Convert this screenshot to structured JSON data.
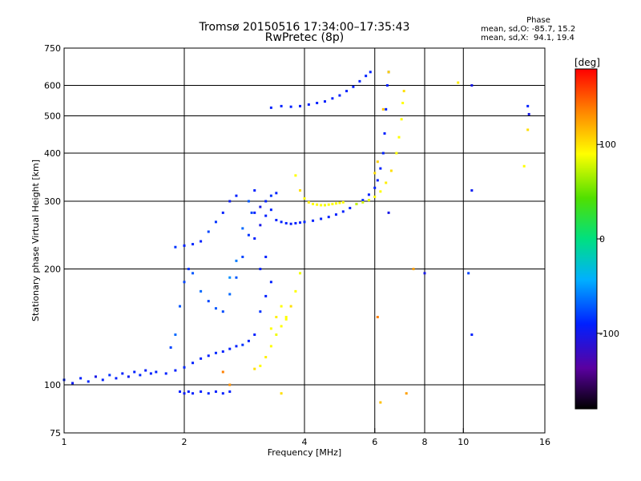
{
  "header": {
    "title": "Tromsø 20150516 17:34:00–17:35:43",
    "subtitle": "RwPretec (8p)"
  },
  "phase_stats": {
    "heading": "Phase",
    "line_o": "mean, sd,O: -85.7, 15.2",
    "line_x": "mean, sd,X:  94.1, 19.4"
  },
  "colorbar": {
    "label": "[deg]",
    "ticks": [
      100,
      0,
      -100
    ],
    "range": [
      -180,
      180
    ]
  },
  "chart_data": {
    "type": "scatter",
    "xlabel": "Frequency [MHz]",
    "ylabel": "Stationary phase Virtual Height [km]",
    "x_scale": "log",
    "y_scale": "log",
    "xlim": [
      1,
      16
    ],
    "ylim": [
      75,
      750
    ],
    "x_ticks": [
      1,
      2,
      4,
      6,
      8,
      10,
      16
    ],
    "y_ticks": [
      75,
      100,
      200,
      300,
      400,
      500,
      600,
      750
    ],
    "x_grid": [
      2,
      4,
      6,
      8,
      10
    ],
    "y_grid": [
      100,
      200,
      300,
      400,
      500,
      600
    ],
    "grid": true,
    "series": [
      {
        "name": "O",
        "points": [
          [
            1.0,
            103,
            -100
          ],
          [
            1.05,
            101,
            -105
          ],
          [
            1.1,
            104,
            -100
          ],
          [
            1.15,
            102,
            -98
          ],
          [
            1.2,
            105,
            -110
          ],
          [
            1.25,
            103,
            -100
          ],
          [
            1.3,
            106,
            -95
          ],
          [
            1.35,
            104,
            -100
          ],
          [
            1.4,
            107,
            -100
          ],
          [
            1.45,
            105,
            -105
          ],
          [
            1.5,
            108,
            -100
          ],
          [
            1.55,
            106,
            -98
          ],
          [
            1.6,
            109,
            -102
          ],
          [
            1.65,
            107,
            -100
          ],
          [
            1.7,
            108,
            -100
          ],
          [
            1.8,
            107,
            -100
          ],
          [
            1.9,
            109,
            -100
          ],
          [
            2.0,
            111,
            -98
          ],
          [
            2.1,
            114,
            -100
          ],
          [
            2.2,
            117,
            -100
          ],
          [
            2.3,
            119,
            -100
          ],
          [
            2.4,
            121,
            -98
          ],
          [
            2.5,
            122,
            -100
          ],
          [
            2.6,
            124,
            -100
          ],
          [
            2.7,
            126,
            -100
          ],
          [
            2.8,
            127,
            -95
          ],
          [
            2.9,
            130,
            -100
          ],
          [
            3.0,
            135,
            -100
          ],
          [
            1.95,
            96,
            -100
          ],
          [
            2.0,
            95,
            -105
          ],
          [
            2.05,
            96,
            -100
          ],
          [
            2.1,
            95,
            -100
          ],
          [
            2.2,
            96,
            -100
          ],
          [
            2.3,
            95,
            -98
          ],
          [
            2.4,
            96,
            -100
          ],
          [
            2.5,
            95,
            -100
          ],
          [
            2.6,
            96,
            -100
          ],
          [
            1.85,
            125,
            -90
          ],
          [
            1.9,
            135,
            -80
          ],
          [
            1.95,
            160,
            -85
          ],
          [
            2.0,
            185,
            -90
          ],
          [
            2.05,
            200,
            -95
          ],
          [
            2.1,
            195,
            -85
          ],
          [
            2.2,
            175,
            -80
          ],
          [
            2.3,
            165,
            -90
          ],
          [
            2.4,
            158,
            -85
          ],
          [
            2.5,
            155,
            -88
          ],
          [
            2.6,
            172,
            -80
          ],
          [
            2.7,
            190,
            -85
          ],
          [
            2.8,
            215,
            -90
          ],
          [
            2.9,
            245,
            -95
          ],
          [
            2.95,
            280,
            -90
          ],
          [
            2.6,
            190,
            -70
          ],
          [
            2.7,
            210,
            -75
          ],
          [
            2.8,
            255,
            -80
          ],
          [
            2.9,
            300,
            -85
          ],
          [
            3.0,
            320,
            -100
          ],
          [
            1.9,
            228,
            -95
          ],
          [
            2.0,
            230,
            -100
          ],
          [
            2.1,
            232,
            -98
          ],
          [
            2.2,
            236,
            -100
          ],
          [
            2.3,
            250,
            -90
          ],
          [
            2.4,
            265,
            -95
          ],
          [
            2.5,
            280,
            -100
          ],
          [
            2.6,
            300,
            -105
          ],
          [
            2.7,
            310,
            -100
          ],
          [
            3.0,
            280,
            -100
          ],
          [
            3.1,
            290,
            -110
          ],
          [
            3.2,
            300,
            -100
          ],
          [
            3.3,
            310,
            -95
          ],
          [
            3.4,
            315,
            -100
          ],
          [
            3.0,
            240,
            -100
          ],
          [
            3.1,
            260,
            -110
          ],
          [
            3.2,
            275,
            -100
          ],
          [
            3.3,
            285,
            -100
          ],
          [
            3.4,
            268,
            -100
          ],
          [
            3.5,
            265,
            -100
          ],
          [
            3.6,
            263,
            -100
          ],
          [
            3.7,
            262,
            -102
          ],
          [
            3.8,
            263,
            -100
          ],
          [
            3.9,
            264,
            -100
          ],
          [
            4.0,
            265,
            -98
          ],
          [
            4.2,
            267,
            -100
          ],
          [
            4.4,
            270,
            -100
          ],
          [
            4.6,
            273,
            -100
          ],
          [
            4.8,
            277,
            -100
          ],
          [
            5.0,
            282,
            -100
          ],
          [
            5.2,
            288,
            -100
          ],
          [
            5.4,
            295,
            -100
          ],
          [
            5.6,
            302,
            -98
          ],
          [
            5.8,
            312,
            -100
          ],
          [
            6.0,
            325,
            -100
          ],
          [
            6.1,
            340,
            -100
          ],
          [
            6.2,
            365,
            -100
          ],
          [
            6.3,
            400,
            -100
          ],
          [
            6.35,
            450,
            -100
          ],
          [
            6.4,
            520,
            -100
          ],
          [
            6.45,
            600,
            -100
          ],
          [
            6.5,
            650,
            -100
          ],
          [
            3.3,
            525,
            -100
          ],
          [
            3.5,
            530,
            -100
          ],
          [
            3.7,
            528,
            -100
          ],
          [
            3.9,
            530,
            -102
          ],
          [
            4.1,
            535,
            -100
          ],
          [
            4.3,
            540,
            -100
          ],
          [
            4.5,
            545,
            -100
          ],
          [
            4.7,
            555,
            -100
          ],
          [
            4.9,
            565,
            -100
          ],
          [
            5.1,
            580,
            -100
          ],
          [
            5.3,
            595,
            -100
          ],
          [
            5.5,
            615,
            -100
          ],
          [
            5.7,
            635,
            -100
          ],
          [
            5.85,
            650,
            -100
          ],
          [
            3.1,
            155,
            -95
          ],
          [
            3.2,
            170,
            -100
          ],
          [
            3.3,
            185,
            -100
          ],
          [
            3.1,
            200,
            -100
          ],
          [
            3.2,
            215,
            -100
          ],
          [
            10.5,
            600,
            -110
          ],
          [
            10.5,
            320,
            -105
          ],
          [
            10.5,
            135,
            -100
          ],
          [
            10.3,
            195,
            -90
          ],
          [
            14.5,
            530,
            -100
          ],
          [
            14.6,
            505,
            -110
          ],
          [
            8.0,
            195,
            -110
          ],
          [
            6.5,
            280,
            -110
          ]
        ]
      },
      {
        "name": "X",
        "points": [
          [
            3.0,
            110,
            110
          ],
          [
            3.1,
            112,
            100
          ],
          [
            3.2,
            118,
            105
          ],
          [
            3.3,
            126,
            100
          ],
          [
            3.4,
            135,
            95
          ],
          [
            3.5,
            142,
            100
          ],
          [
            3.6,
            150,
            100
          ],
          [
            3.7,
            160,
            110
          ],
          [
            3.8,
            175,
            100
          ],
          [
            3.9,
            195,
            95
          ],
          [
            3.3,
            140,
            100
          ],
          [
            3.4,
            150,
            105
          ],
          [
            3.5,
            160,
            100
          ],
          [
            3.6,
            148,
            100
          ],
          [
            3.8,
            350,
            100
          ],
          [
            3.9,
            320,
            110
          ],
          [
            4.0,
            305,
            100
          ],
          [
            4.1,
            298,
            105
          ],
          [
            4.2,
            295,
            100
          ],
          [
            4.3,
            294,
            100
          ],
          [
            4.4,
            293,
            100
          ],
          [
            4.5,
            293,
            95
          ],
          [
            4.6,
            294,
            100
          ],
          [
            4.7,
            295,
            100
          ],
          [
            4.8,
            296,
            100
          ],
          [
            4.9,
            297,
            100
          ],
          [
            5.0,
            298,
            100
          ],
          [
            5.4,
            295,
            80
          ],
          [
            5.6,
            298,
            85
          ],
          [
            5.8,
            302,
            90
          ],
          [
            6.0,
            308,
            100
          ],
          [
            6.2,
            318,
            100
          ],
          [
            6.4,
            335,
            105
          ],
          [
            6.6,
            360,
            110
          ],
          [
            6.8,
            400,
            100
          ],
          [
            6.9,
            440,
            100
          ],
          [
            7.0,
            490,
            100
          ],
          [
            7.05,
            540,
            100
          ],
          [
            7.1,
            580,
            110
          ],
          [
            6.0,
            355,
            110
          ],
          [
            6.1,
            380,
            115
          ],
          [
            6.3,
            520,
            120
          ],
          [
            6.5,
            650,
            115
          ],
          [
            3.5,
            95,
            110
          ],
          [
            2.5,
            108,
            140
          ],
          [
            2.6,
            100,
            135
          ],
          [
            6.2,
            90,
            120
          ],
          [
            7.2,
            95,
            130
          ],
          [
            6.1,
            150,
            140
          ],
          [
            7.5,
            200,
            130
          ],
          [
            14.2,
            370,
            100
          ],
          [
            14.5,
            460,
            110
          ],
          [
            9.7,
            610,
            105
          ]
        ]
      }
    ]
  }
}
